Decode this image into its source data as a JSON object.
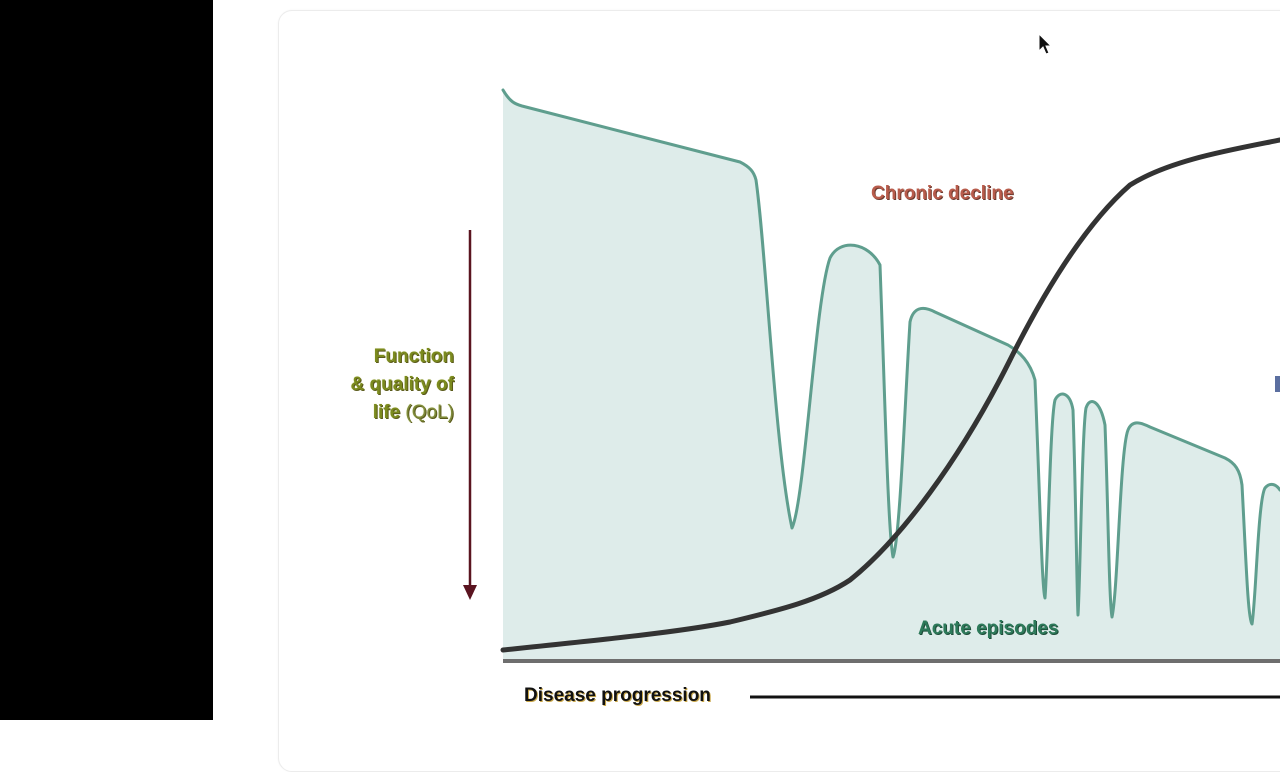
{
  "diagram": {
    "y_axis_label": {
      "line1": "Function",
      "line2": "& quality of",
      "line3": "life",
      "abbrev": "(QoL)"
    },
    "chronic_label": "Chronic decline",
    "acute_label": "Acute episodes",
    "x_axis_label": "Disease progression",
    "colors": {
      "qol_curve": "#5f9e8e",
      "qol_fill": "#deecea",
      "decline_curve": "#333333",
      "arrow": "#5a1420",
      "y_label": "#7b8a1e",
      "chronic_label": "#b85c4c",
      "acute_label": "#2d7a5a"
    },
    "icons": {
      "arrow": "down-arrow-icon",
      "cursor": "mouse-pointer-icon"
    }
  }
}
